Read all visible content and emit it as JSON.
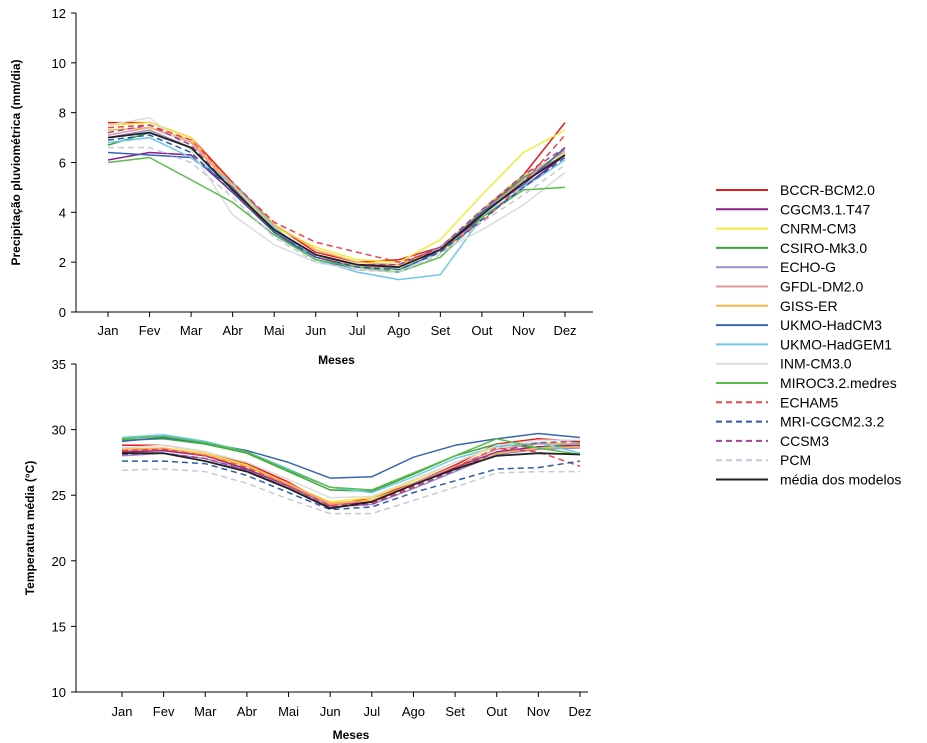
{
  "chart_data": [
    {
      "type": "line",
      "title": "",
      "xlabel": "Meses",
      "ylabel": "Precipitação pluviométrica (mm/dia)",
      "ylim": [
        0,
        12
      ],
      "yticks": [
        0,
        2,
        4,
        6,
        8,
        10,
        12
      ],
      "categories": [
        "Jan",
        "Fev",
        "Mar",
        "Abr",
        "Mai",
        "Jun",
        "Jul",
        "Ago",
        "Set",
        "Out",
        "Nov",
        "Dez"
      ],
      "grid": false,
      "series": [
        {
          "name": "BCCR-BCM2.0",
          "values": [
            7.6,
            7.6,
            7.0,
            5.2,
            3.5,
            2.4,
            2.0,
            2.1,
            2.6,
            4.0,
            5.5,
            7.6
          ]
        },
        {
          "name": "CGCM3.1.T47",
          "values": [
            6.1,
            6.4,
            6.3,
            4.8,
            3.2,
            2.2,
            1.8,
            1.8,
            2.5,
            3.8,
            5.0,
            6.3
          ]
        },
        {
          "name": "CNRM-CM3",
          "values": [
            7.5,
            7.6,
            7.0,
            5.0,
            3.4,
            2.6,
            2.1,
            2.0,
            2.9,
            4.7,
            6.4,
            7.3
          ]
        },
        {
          "name": "CSIRO-Mk3.0",
          "values": [
            6.7,
            7.2,
            6.6,
            4.9,
            3.3,
            2.3,
            1.9,
            1.7,
            2.4,
            4.0,
            5.4,
            6.3
          ]
        },
        {
          "name": "ECHO-G",
          "values": [
            7.0,
            7.3,
            6.6,
            4.9,
            3.3,
            2.3,
            1.9,
            1.9,
            2.6,
            4.0,
            5.3,
            6.5
          ]
        },
        {
          "name": "GFDL-DM2.0",
          "values": [
            7.1,
            7.4,
            6.8,
            5.0,
            3.3,
            2.3,
            1.8,
            1.8,
            2.5,
            3.9,
            5.3,
            6.3
          ]
        },
        {
          "name": "GISS-ER",
          "values": [
            7.3,
            7.4,
            6.9,
            5.1,
            3.5,
            2.5,
            2.0,
            1.9,
            2.5,
            4.1,
            5.5,
            6.4
          ]
        },
        {
          "name": "UKMO-HadCM3",
          "values": [
            6.4,
            6.3,
            6.2,
            5.0,
            3.2,
            2.1,
            1.7,
            1.6,
            2.5,
            4.0,
            5.1,
            6.6
          ]
        },
        {
          "name": "UKMO-HadGEM1",
          "values": [
            6.8,
            7.0,
            6.2,
            5.2,
            3.4,
            2.1,
            1.6,
            1.3,
            1.5,
            3.8,
            5.0,
            6.1
          ]
        },
        {
          "name": "INM-CM3.0",
          "values": [
            7.5,
            7.8,
            6.5,
            3.9,
            2.7,
            2.0,
            1.7,
            1.6,
            2.4,
            3.3,
            4.3,
            5.6
          ]
        },
        {
          "name": "MIROC3.2.medres",
          "values": [
            6.0,
            6.2,
            5.3,
            4.4,
            3.1,
            2.1,
            1.8,
            1.6,
            2.2,
            3.8,
            4.9,
            5.0
          ]
        },
        {
          "name": "ECHAM5",
          "values": [
            7.4,
            7.5,
            6.9,
            5.2,
            3.6,
            2.8,
            2.4,
            2.0,
            2.5,
            3.6,
            5.2,
            7.1
          ]
        },
        {
          "name": "MRI-CGCM2.3.2",
          "values": [
            6.9,
            7.1,
            6.4,
            4.8,
            3.2,
            2.2,
            1.8,
            1.7,
            2.4,
            3.7,
            5.0,
            6.2
          ]
        },
        {
          "name": "CCSM3",
          "values": [
            7.2,
            7.5,
            6.7,
            4.9,
            3.3,
            2.3,
            1.9,
            1.9,
            2.6,
            4.1,
            5.5,
            6.6
          ]
        },
        {
          "name": "PCM",
          "values": [
            6.6,
            6.6,
            6.0,
            4.6,
            3.0,
            2.0,
            1.7,
            1.6,
            2.3,
            3.6,
            4.7,
            5.9
          ]
        },
        {
          "name": "média dos modelos",
          "values": [
            7.0,
            7.2,
            6.6,
            4.9,
            3.3,
            2.3,
            1.9,
            1.8,
            2.5,
            3.9,
            5.2,
            6.3
          ]
        }
      ]
    },
    {
      "type": "line",
      "title": "",
      "xlabel": "Meses",
      "ylabel": "Temperatura média (°C)",
      "ylim": [
        10,
        35
      ],
      "yticks": [
        10,
        15,
        20,
        25,
        30,
        35
      ],
      "categories": [
        "Jan",
        "Fev",
        "Mar",
        "Abr",
        "Mai",
        "Jun",
        "Jul",
        "Ago",
        "Set",
        "Out",
        "Nov",
        "Dez"
      ],
      "grid": false,
      "series": [
        {
          "name": "BCCR-BCM2.0",
          "values": [
            28.8,
            28.8,
            28.3,
            27.4,
            26.0,
            24.2,
            24.8,
            25.9,
            27.3,
            28.9,
            29.3,
            29.1
          ]
        },
        {
          "name": "CGCM3.1.T47",
          "values": [
            28.3,
            28.4,
            28.0,
            27.0,
            25.7,
            24.3,
            24.5,
            25.8,
            27.1,
            28.3,
            28.7,
            28.8
          ]
        },
        {
          "name": "CNRM-CM3",
          "values": [
            28.6,
            28.8,
            28.2,
            27.3,
            25.8,
            24.5,
            24.8,
            26.1,
            27.5,
            28.7,
            29.0,
            28.9
          ]
        },
        {
          "name": "CSIRO-Mk3.0",
          "values": [
            29.2,
            29.3,
            28.9,
            28.2,
            26.8,
            25.4,
            25.3,
            26.6,
            28.0,
            28.9,
            28.6,
            29.0
          ]
        },
        {
          "name": "ECHO-G",
          "values": [
            28.0,
            28.2,
            27.8,
            26.9,
            25.6,
            24.1,
            24.3,
            25.5,
            26.8,
            28.1,
            28.5,
            28.6
          ]
        },
        {
          "name": "GFDL-DM2.0",
          "values": [
            28.4,
            28.5,
            28.1,
            27.2,
            25.8,
            24.3,
            24.6,
            25.9,
            27.2,
            28.5,
            28.9,
            28.9
          ]
        },
        {
          "name": "GISS-ER",
          "values": [
            28.5,
            28.6,
            28.1,
            27.2,
            25.9,
            24.4,
            24.6,
            25.8,
            27.0,
            28.2,
            28.6,
            28.7
          ]
        },
        {
          "name": "UKMO-HadCM3",
          "values": [
            29.1,
            29.4,
            29.0,
            28.4,
            27.5,
            26.3,
            26.4,
            27.9,
            28.8,
            29.3,
            29.7,
            29.4
          ]
        },
        {
          "name": "UKMO-HadGEM1",
          "values": [
            29.4,
            29.6,
            29.1,
            28.3,
            27.0,
            25.6,
            25.2,
            26.4,
            27.8,
            28.7,
            29.0,
            28.2
          ]
        },
        {
          "name": "INM-CM3.0",
          "values": [
            28.6,
            28.8,
            28.3,
            27.5,
            26.2,
            24.8,
            24.9,
            26.2,
            27.5,
            28.8,
            29.2,
            29.2
          ]
        },
        {
          "name": "MIROC3.2.medres",
          "values": [
            29.3,
            29.5,
            29.0,
            28.3,
            26.9,
            25.6,
            25.4,
            26.7,
            28.0,
            29.3,
            28.6,
            28.1
          ]
        },
        {
          "name": "ECHAM5",
          "values": [
            28.4,
            28.5,
            28.0,
            27.1,
            25.7,
            24.2,
            24.4,
            25.7,
            27.1,
            28.6,
            28.3,
            27.2
          ]
        },
        {
          "name": "MRI-CGCM2.3.2",
          "values": [
            27.6,
            27.6,
            27.4,
            26.5,
            25.2,
            23.9,
            24.1,
            25.2,
            26.1,
            27.0,
            27.1,
            27.6
          ]
        },
        {
          "name": "CCSM3",
          "values": [
            28.1,
            28.2,
            27.8,
            26.9,
            25.5,
            24.1,
            24.3,
            25.6,
            26.9,
            28.3,
            29.0,
            29.1
          ]
        },
        {
          "name": "PCM",
          "values": [
            26.9,
            27.0,
            26.8,
            25.9,
            24.7,
            23.6,
            23.6,
            24.6,
            25.6,
            26.7,
            26.8,
            26.8
          ]
        },
        {
          "name": "média dos modelos",
          "values": [
            28.2,
            28.2,
            27.6,
            26.8,
            25.5,
            24.0,
            24.5,
            25.8,
            27.0,
            28.0,
            28.2,
            28.1
          ]
        }
      ]
    }
  ],
  "styles": [
    {
      "color": "#e41a1c",
      "dash": false
    },
    {
      "color": "#8c1d8c",
      "dash": false
    },
    {
      "color": "#f2ea3a",
      "dash": false
    },
    {
      "color": "#3aa63a",
      "dash": false
    },
    {
      "color": "#9e8cc8",
      "dash": false
    },
    {
      "color": "#e09a9a",
      "dash": false
    },
    {
      "color": "#fbb44c",
      "dash": false
    },
    {
      "color": "#3a66b0",
      "dash": false
    },
    {
      "color": "#6ec8ea",
      "dash": false
    },
    {
      "color": "#dcdcdc",
      "dash": false
    },
    {
      "color": "#58bc48",
      "dash": false
    },
    {
      "color": "#ee4444",
      "dash": true
    },
    {
      "color": "#2f5aa6",
      "dash": true
    },
    {
      "color": "#a0459a",
      "dash": true
    },
    {
      "color": "#c8c8dc",
      "dash": true
    },
    {
      "color": "#222222",
      "dash": false
    }
  ]
}
